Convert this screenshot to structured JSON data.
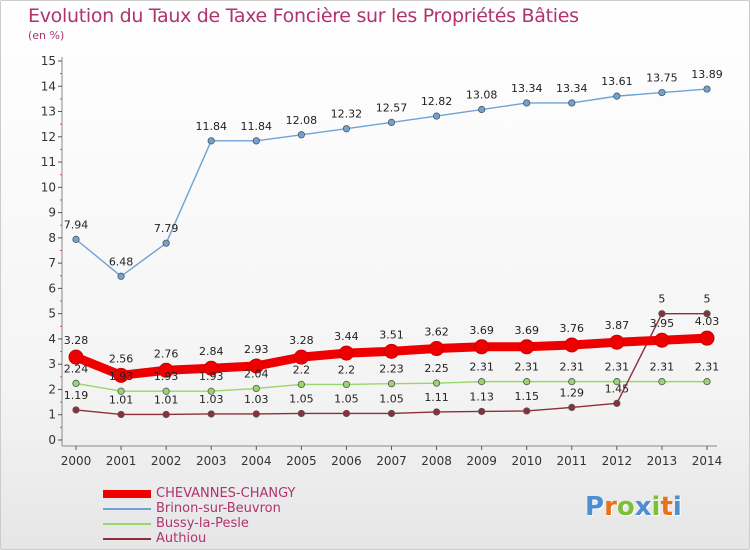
{
  "title": "Evolution du Taux de Taxe Foncière sur les Propriétés Bâties",
  "unit": "(en %)",
  "logo": {
    "letters": [
      "P",
      "r",
      "o",
      "x",
      "i",
      "t",
      "i"
    ],
    "colors": [
      "#4c8fd0",
      "#e8721c",
      "#7bbf3a",
      "#4c8fd0",
      "#7bbf3a",
      "#e8721c",
      "#4c8fd0"
    ]
  },
  "chart_data": {
    "type": "line",
    "x": [
      2000,
      2001,
      2002,
      2003,
      2004,
      2005,
      2006,
      2007,
      2008,
      2009,
      2010,
      2011,
      2012,
      2013,
      2014
    ],
    "ylim": [
      0,
      15
    ],
    "yticks": [
      0,
      1,
      2,
      3,
      4,
      5,
      6,
      7,
      8,
      9,
      10,
      11,
      12,
      13,
      14,
      15
    ],
    "grid": false,
    "legend": "bottom-left",
    "series": [
      {
        "name": "CHEVANNES-CHANGY",
        "color": "#ee0000",
        "values": [
          3.28,
          2.56,
          2.76,
          2.84,
          2.93,
          3.28,
          3.44,
          3.51,
          3.62,
          3.69,
          3.69,
          3.76,
          3.87,
          3.95,
          4.03
        ],
        "labels": [
          "3.28",
          "2.56",
          "2.76",
          "2.84",
          "2.93",
          "3.28",
          "3.44",
          "3.51",
          "3.62",
          "3.69",
          "3.69",
          "3.76",
          "3.87",
          "3.95",
          "4.03"
        ]
      },
      {
        "name": "Brinon-sur-Beuvron",
        "color": "#6fa3d6",
        "values": [
          7.94,
          6.48,
          7.79,
          11.84,
          11.84,
          12.08,
          12.32,
          12.57,
          12.82,
          13.08,
          13.34,
          13.34,
          13.61,
          13.75,
          13.89
        ],
        "labels": [
          "7.94",
          "6.48",
          "7.79",
          "11.84",
          "11.84",
          "12.08",
          "12.32",
          "12.57",
          "12.82",
          "13.08",
          "13.34",
          "13.34",
          "13.61",
          "13.75",
          "13.89"
        ]
      },
      {
        "name": "Bussy-la-Pesle",
        "color": "#99d66b",
        "values": [
          2.24,
          1.93,
          1.93,
          1.93,
          2.04,
          2.2,
          2.2,
          2.23,
          2.25,
          2.31,
          2.31,
          2.31,
          2.31,
          2.31,
          2.31
        ],
        "labels": [
          "2.24",
          "1.93",
          "1.93",
          "1.93",
          "2.04",
          "2.2",
          "2.2",
          "2.23",
          "2.25",
          "2.31",
          "2.31",
          "2.31",
          "2.31",
          "2.31",
          "2.31"
        ]
      },
      {
        "name": "Authiou",
        "color": "#8c2f3a",
        "values": [
          1.19,
          1.01,
          1.01,
          1.03,
          1.03,
          1.05,
          1.05,
          1.05,
          1.11,
          1.13,
          1.15,
          1.29,
          1.45,
          5,
          5
        ],
        "labels": [
          "1.19",
          "1.01",
          "1.01",
          "1.03",
          "1.03",
          "1.05",
          "1.05",
          "1.05",
          "1.11",
          "1.13",
          "1.15",
          "1.29",
          "1.45",
          "5",
          "5"
        ]
      }
    ]
  }
}
